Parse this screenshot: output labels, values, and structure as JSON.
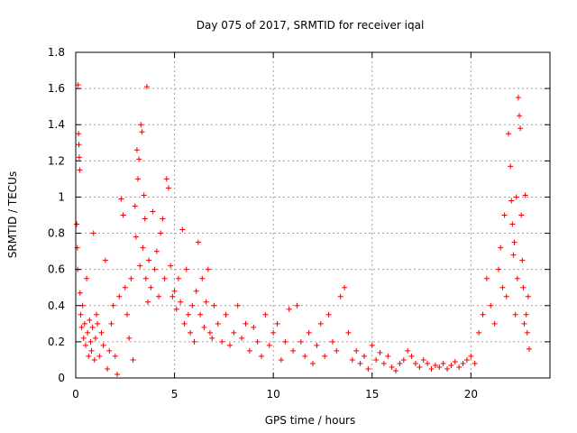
{
  "chart_data": {
    "type": "scatter",
    "title": "Day 075 of 2017, SRMTID for receiver iqal",
    "xlabel": "GPS time / hours",
    "ylabel": "SRMTID / TECUs",
    "xlim": [
      0,
      24
    ],
    "ylim": [
      0,
      1.8
    ],
    "xticks": [
      0,
      5,
      10,
      15,
      20
    ],
    "yticks": [
      0,
      0.2,
      0.4,
      0.6,
      0.8,
      1,
      1.2,
      1.4,
      1.6,
      1.8
    ],
    "xtick_labels": [
      "0",
      "5",
      "10",
      "15",
      "20"
    ],
    "ytick_labels": [
      "0",
      "0.2",
      "0.4",
      "0.6",
      "0.8",
      "1",
      "1.2",
      "1.4",
      "1.6",
      "1.8"
    ],
    "grid": true,
    "marker": "plus",
    "marker_color": "#ee0000",
    "series": [
      {
        "name": "SRMTID",
        "points": [
          [
            0.05,
            0.85
          ],
          [
            0.08,
            0.72
          ],
          [
            0.1,
            0.6
          ],
          [
            0.12,
            1.62
          ],
          [
            0.14,
            1.35
          ],
          [
            0.16,
            1.29
          ],
          [
            0.18,
            1.22
          ],
          [
            0.2,
            1.15
          ],
          [
            0.22,
            0.47
          ],
          [
            0.25,
            0.35
          ],
          [
            0.3,
            0.28
          ],
          [
            0.35,
            0.4
          ],
          [
            0.4,
            0.22
          ],
          [
            0.45,
            0.3
          ],
          [
            0.5,
            0.18
          ],
          [
            0.55,
            0.55
          ],
          [
            0.6,
            0.25
          ],
          [
            0.65,
            0.12
          ],
          [
            0.7,
            0.32
          ],
          [
            0.75,
            0.2
          ],
          [
            0.8,
            0.15
          ],
          [
            0.85,
            0.28
          ],
          [
            0.9,
            0.8
          ],
          [
            0.95,
            0.1
          ],
          [
            1.0,
            0.22
          ],
          [
            1.05,
            0.35
          ],
          [
            1.1,
            0.3
          ],
          [
            1.2,
            0.12
          ],
          [
            1.3,
            0.25
          ],
          [
            1.4,
            0.18
          ],
          [
            1.5,
            0.65
          ],
          [
            1.6,
            0.05
          ],
          [
            1.7,
            0.15
          ],
          [
            1.8,
            0.3
          ],
          [
            1.9,
            0.4
          ],
          [
            2.0,
            0.12
          ],
          [
            2.1,
            0.02
          ],
          [
            2.2,
            0.45
          ],
          [
            2.3,
            0.99
          ],
          [
            2.4,
            0.9
          ],
          [
            2.5,
            0.5
          ],
          [
            2.6,
            0.35
          ],
          [
            2.7,
            0.22
          ],
          [
            2.8,
            0.55
          ],
          [
            2.9,
            0.1
          ],
          [
            3.0,
            0.95
          ],
          [
            3.05,
            0.78
          ],
          [
            3.1,
            1.26
          ],
          [
            3.15,
            1.1
          ],
          [
            3.2,
            1.21
          ],
          [
            3.25,
            0.62
          ],
          [
            3.3,
            1.4
          ],
          [
            3.35,
            1.36
          ],
          [
            3.4,
            0.72
          ],
          [
            3.45,
            1.01
          ],
          [
            3.5,
            0.88
          ],
          [
            3.55,
            0.55
          ],
          [
            3.6,
            1.61
          ],
          [
            3.65,
            0.42
          ],
          [
            3.7,
            0.65
          ],
          [
            3.8,
            0.5
          ],
          [
            3.9,
            0.92
          ],
          [
            4.0,
            0.6
          ],
          [
            4.1,
            0.7
          ],
          [
            4.2,
            0.45
          ],
          [
            4.3,
            0.8
          ],
          [
            4.4,
            0.88
          ],
          [
            4.5,
            0.55
          ],
          [
            4.6,
            1.1
          ],
          [
            4.7,
            1.05
          ],
          [
            4.8,
            0.62
          ],
          [
            4.9,
            0.45
          ],
          [
            5.0,
            0.48
          ],
          [
            5.1,
            0.38
          ],
          [
            5.2,
            0.55
          ],
          [
            5.3,
            0.42
          ],
          [
            5.4,
            0.82
          ],
          [
            5.5,
            0.3
          ],
          [
            5.6,
            0.6
          ],
          [
            5.7,
            0.35
          ],
          [
            5.8,
            0.25
          ],
          [
            5.9,
            0.4
          ],
          [
            6.0,
            0.2
          ],
          [
            6.1,
            0.48
          ],
          [
            6.2,
            0.75
          ],
          [
            6.3,
            0.35
          ],
          [
            6.4,
            0.55
          ],
          [
            6.5,
            0.28
          ],
          [
            6.6,
            0.42
          ],
          [
            6.7,
            0.6
          ],
          [
            6.8,
            0.25
          ],
          [
            6.9,
            0.22
          ],
          [
            7.0,
            0.4
          ],
          [
            7.2,
            0.3
          ],
          [
            7.4,
            0.2
          ],
          [
            7.6,
            0.35
          ],
          [
            7.8,
            0.18
          ],
          [
            8.0,
            0.25
          ],
          [
            8.2,
            0.4
          ],
          [
            8.4,
            0.22
          ],
          [
            8.6,
            0.3
          ],
          [
            8.8,
            0.15
          ],
          [
            9.0,
            0.28
          ],
          [
            9.2,
            0.2
          ],
          [
            9.4,
            0.12
          ],
          [
            9.6,
            0.35
          ],
          [
            9.8,
            0.18
          ],
          [
            10.0,
            0.25
          ],
          [
            10.2,
            0.3
          ],
          [
            10.4,
            0.1
          ],
          [
            10.6,
            0.2
          ],
          [
            10.8,
            0.38
          ],
          [
            11.0,
            0.15
          ],
          [
            11.2,
            0.4
          ],
          [
            11.4,
            0.2
          ],
          [
            11.6,
            0.12
          ],
          [
            11.8,
            0.25
          ],
          [
            12.0,
            0.08
          ],
          [
            12.2,
            0.18
          ],
          [
            12.4,
            0.3
          ],
          [
            12.6,
            0.12
          ],
          [
            12.8,
            0.35
          ],
          [
            13.0,
            0.2
          ],
          [
            13.2,
            0.15
          ],
          [
            13.4,
            0.45
          ],
          [
            13.6,
            0.5
          ],
          [
            13.8,
            0.25
          ],
          [
            14.0,
            0.1
          ],
          [
            14.2,
            0.15
          ],
          [
            14.4,
            0.08
          ],
          [
            14.6,
            0.12
          ],
          [
            14.8,
            0.05
          ],
          [
            15.0,
            0.18
          ],
          [
            15.2,
            0.1
          ],
          [
            15.4,
            0.14
          ],
          [
            15.6,
            0.08
          ],
          [
            15.8,
            0.12
          ],
          [
            16.0,
            0.06
          ],
          [
            16.2,
            0.04
          ],
          [
            16.4,
            0.08
          ],
          [
            16.6,
            0.1
          ],
          [
            16.8,
            0.15
          ],
          [
            17.0,
            0.12
          ],
          [
            17.2,
            0.08
          ],
          [
            17.4,
            0.06
          ],
          [
            17.6,
            0.1
          ],
          [
            17.8,
            0.08
          ],
          [
            18.0,
            0.05
          ],
          [
            18.2,
            0.07
          ],
          [
            18.4,
            0.06
          ],
          [
            18.6,
            0.08
          ],
          [
            18.8,
            0.05
          ],
          [
            19.0,
            0.07
          ],
          [
            19.2,
            0.09
          ],
          [
            19.4,
            0.06
          ],
          [
            19.6,
            0.08
          ],
          [
            19.8,
            0.1
          ],
          [
            20.0,
            0.12
          ],
          [
            20.2,
            0.08
          ],
          [
            20.4,
            0.25
          ],
          [
            20.6,
            0.35
          ],
          [
            20.8,
            0.55
          ],
          [
            21.0,
            0.4
          ],
          [
            21.2,
            0.3
          ],
          [
            21.4,
            0.6
          ],
          [
            21.5,
            0.72
          ],
          [
            21.6,
            0.5
          ],
          [
            21.7,
            0.9
          ],
          [
            21.8,
            0.45
          ],
          [
            21.9,
            1.35
          ],
          [
            22.0,
            1.17
          ],
          [
            22.05,
            0.98
          ],
          [
            22.1,
            0.85
          ],
          [
            22.15,
            0.68
          ],
          [
            22.2,
            0.75
          ],
          [
            22.25,
            0.35
          ],
          [
            22.3,
            1.0
          ],
          [
            22.35,
            0.55
          ],
          [
            22.4,
            1.55
          ],
          [
            22.45,
            1.45
          ],
          [
            22.5,
            1.38
          ],
          [
            22.55,
            0.9
          ],
          [
            22.6,
            0.65
          ],
          [
            22.65,
            0.5
          ],
          [
            22.7,
            0.3
          ],
          [
            22.75,
            1.01
          ],
          [
            22.8,
            0.35
          ],
          [
            22.85,
            0.25
          ],
          [
            22.9,
            0.45
          ],
          [
            22.95,
            0.16
          ]
        ]
      }
    ]
  }
}
